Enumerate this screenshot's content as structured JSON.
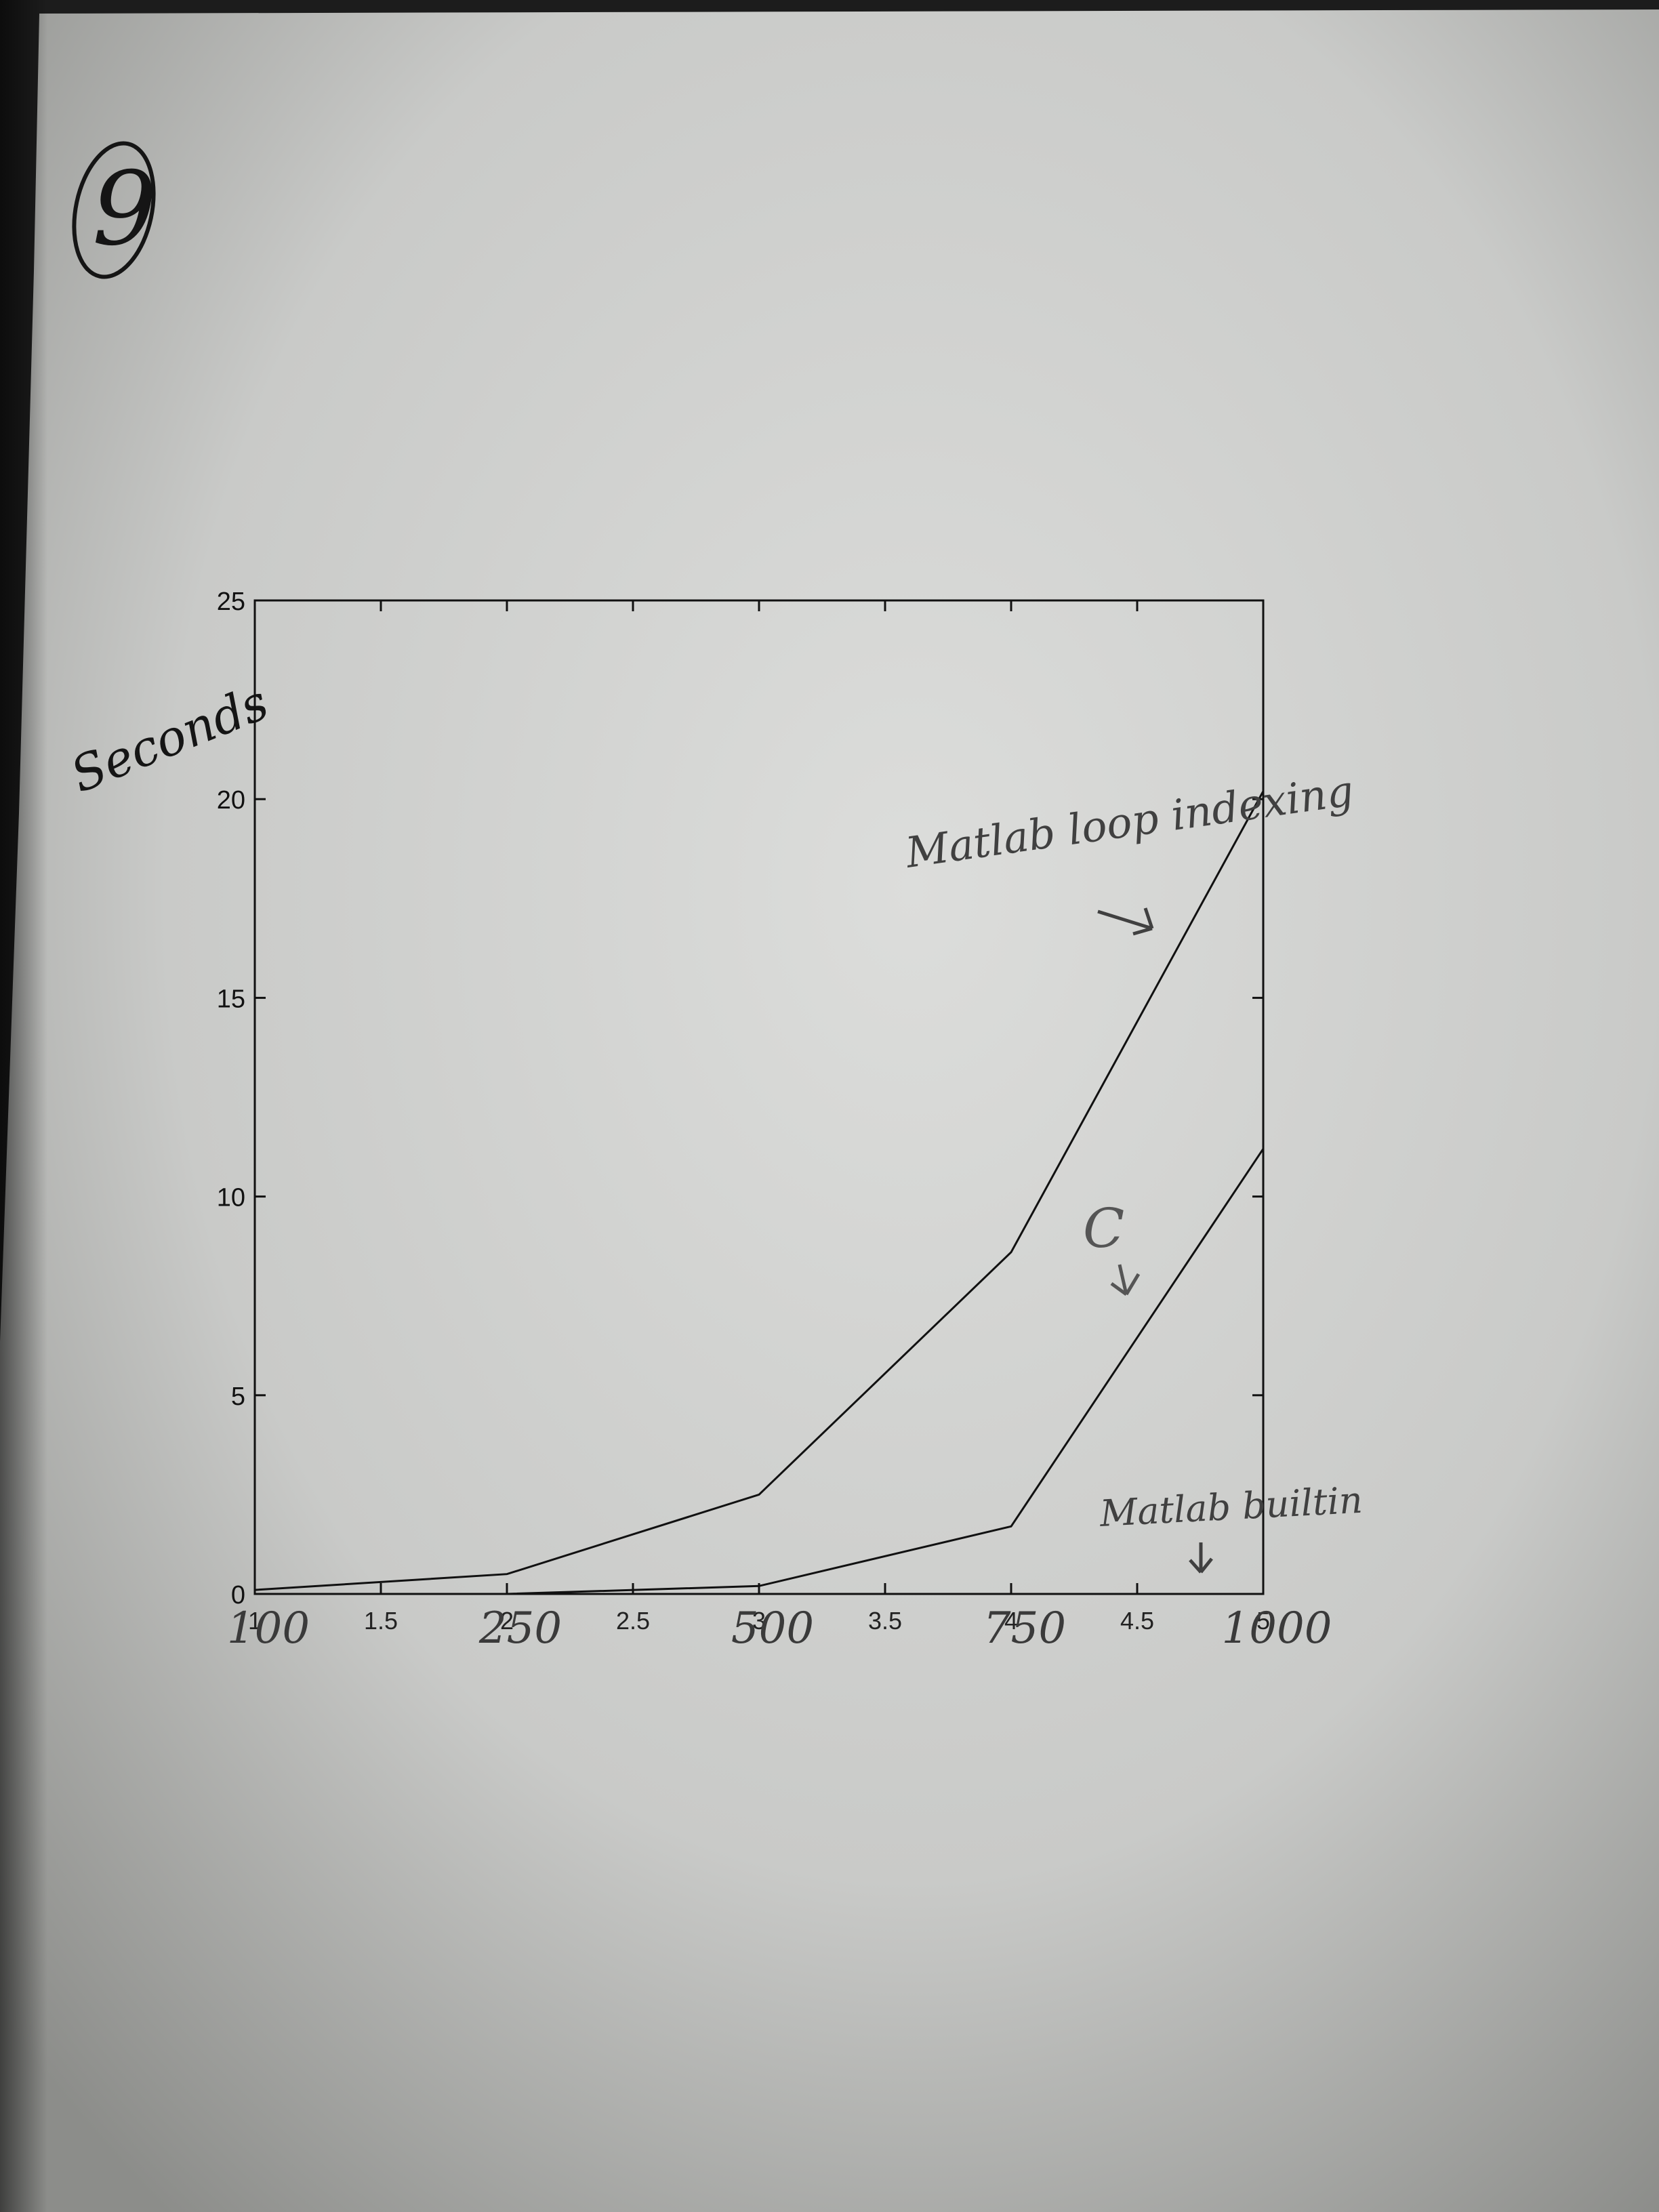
{
  "page_number": "9",
  "chart_data": {
    "type": "line",
    "ylabel": "Seconds",
    "xlabel": "",
    "ylim": [
      0,
      25
    ],
    "xlim": [
      1,
      5
    ],
    "printed_x_ticks": [
      "1",
      "1.5",
      "2",
      "2.5",
      "3",
      "3.5",
      "4",
      "4.5",
      "5"
    ],
    "handwritten_x_ticks": [
      {
        "x": 1,
        "label": "100"
      },
      {
        "x": 2,
        "label": "250"
      },
      {
        "x": 3,
        "label": "500"
      },
      {
        "x": 4,
        "label": "750"
      },
      {
        "x": 5,
        "label": "1000"
      }
    ],
    "y_ticks": [
      "0",
      "5",
      "10",
      "15",
      "20",
      "25"
    ],
    "series": [
      {
        "name": "Matlab loop indexing",
        "x": [
          1,
          2,
          3,
          4,
          5
        ],
        "values": [
          0.1,
          0.5,
          2.5,
          8.6,
          20.2
        ]
      },
      {
        "name": "C",
        "x": [
          1,
          2,
          3,
          4,
          5
        ],
        "values": [
          0.0,
          0.0,
          0.2,
          1.7,
          11.2
        ]
      },
      {
        "name": "Matlab builtin",
        "x": [
          1,
          2,
          3,
          4,
          5
        ],
        "values": [
          0.0,
          0.0,
          0.0,
          0.0,
          0.0
        ]
      }
    ]
  },
  "colors": {
    "paper": "#d4d5d3",
    "ink": "#111111",
    "pencil": "#4a4a4a"
  }
}
